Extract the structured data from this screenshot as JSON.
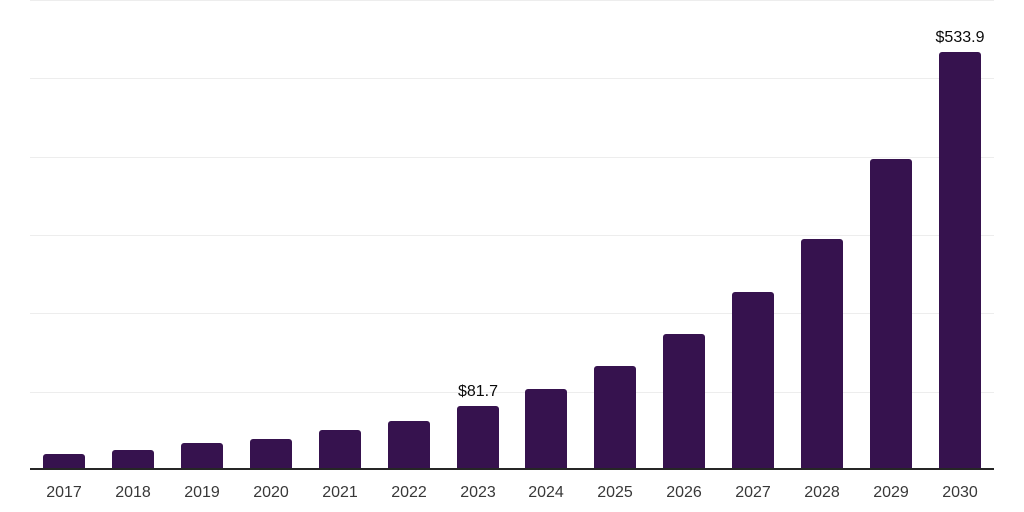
{
  "chart_data": {
    "type": "bar",
    "title": "",
    "xlabel": "",
    "ylabel": "",
    "categories": [
      "2017",
      "2018",
      "2019",
      "2020",
      "2021",
      "2022",
      "2023",
      "2024",
      "2025",
      "2026",
      "2027",
      "2028",
      "2029",
      "2030"
    ],
    "values": [
      21,
      26,
      35,
      40,
      51,
      63,
      81.7,
      104,
      133,
      174,
      227,
      295,
      397,
      533.9
    ],
    "data_labels": {
      "2023": "$81.7",
      "2030": "$533.9"
    },
    "unit_prefix": "$",
    "ylim": [
      0,
      600
    ],
    "gridline_interval": 100,
    "grid": "horizontal",
    "legend_position": "none",
    "y_axis_tick_labels_visible": false
  },
  "colors": {
    "bar": "#36124e",
    "gridline": "#ededed",
    "axis_line": "#262626",
    "x_tick_label": "#383838",
    "data_label": "#0a0a0a",
    "background": "#ffffff"
  }
}
